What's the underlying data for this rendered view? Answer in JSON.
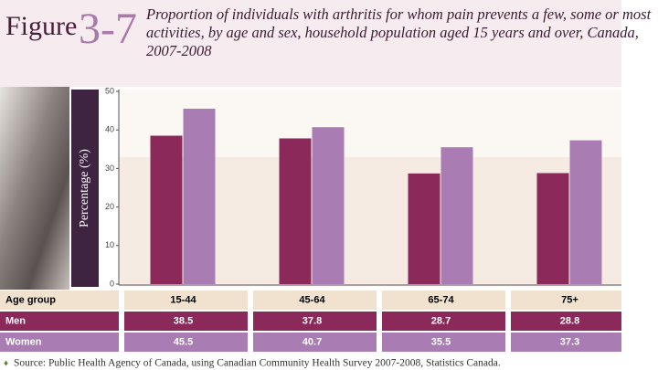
{
  "chart_data": {
    "type": "bar",
    "figure_label": "Figure",
    "figure_number": "3-7",
    "title": "Proportion of individuals with arthritis for whom pain prevents a few, some or most activities, by age and sex, household population aged 15 years and over, Canada, 2007-2008",
    "y_label": "Percentage (%)",
    "x_label": "Age group",
    "categories": [
      "15-44",
      "45-64",
      "65-74",
      "75+"
    ],
    "series": [
      {
        "name": "Men",
        "color": "#8b2a5a",
        "values": [
          38.5,
          37.8,
          28.7,
          28.8
        ]
      },
      {
        "name": "Women",
        "color": "#a97db3",
        "values": [
          45.5,
          40.7,
          35.5,
          37.3
        ]
      }
    ],
    "ylim": [
      0,
      50
    ],
    "yticks": [
      0,
      10,
      20,
      30,
      40,
      50
    ],
    "source": "Source: Public Health Agency of Canada, using Canadian Community Health Survey 2007-2008, Statistics Canada."
  }
}
